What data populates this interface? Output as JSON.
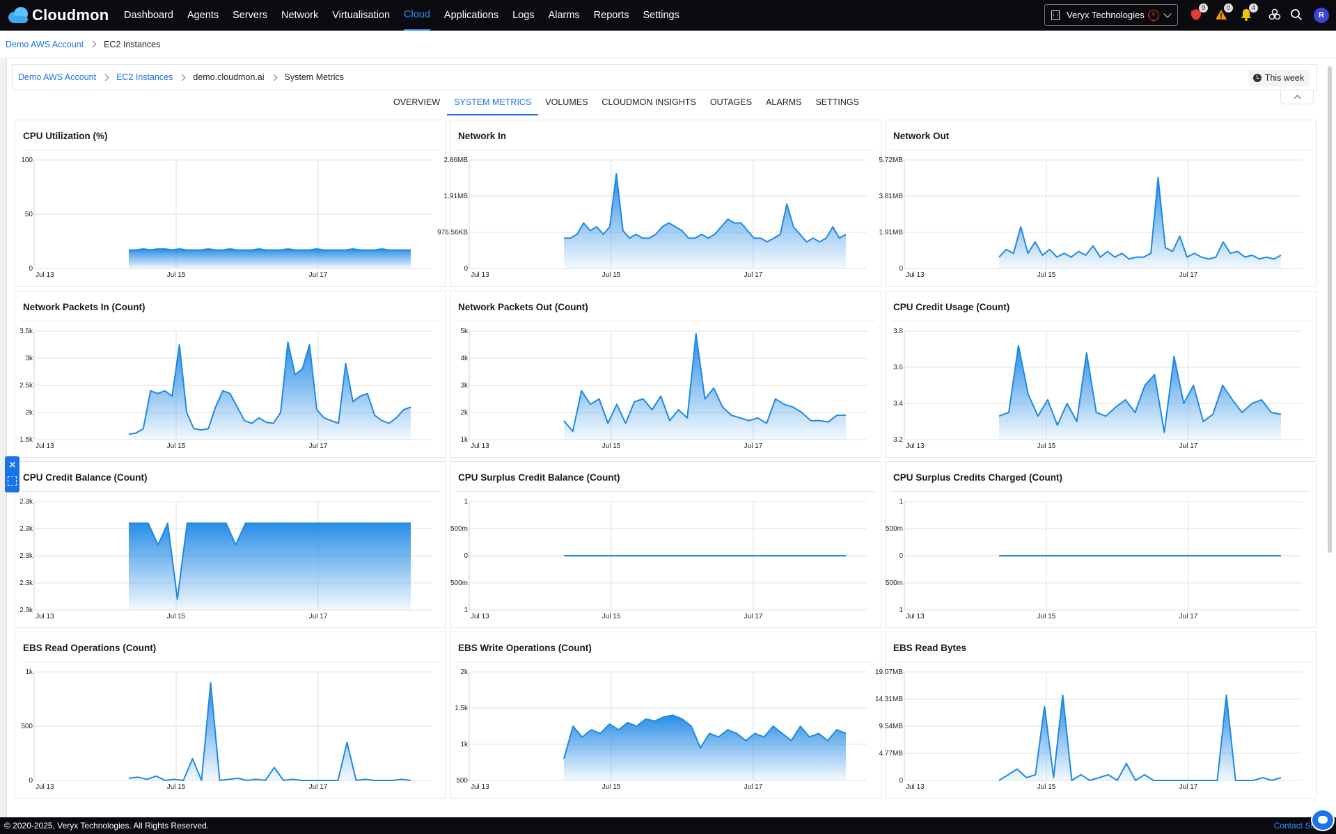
{
  "app": {
    "name": "Cloudmon"
  },
  "nav": {
    "items": [
      "Dashboard",
      "Agents",
      "Servers",
      "Network",
      "Virtualisation",
      "Cloud",
      "Applications",
      "Logs",
      "Alarms",
      "Reports",
      "Settings"
    ],
    "active": "Cloud"
  },
  "org_select": {
    "value": "Veryx Technologies"
  },
  "notifications": {
    "security_count": "9",
    "warning_count": "0",
    "bell_count": "4"
  },
  "user": {
    "avatar_initial": "R"
  },
  "breadcrumb_top": {
    "level1": "Demo AWS Account",
    "level2": "EC2 Instances"
  },
  "breadcrumb_inner": {
    "level1": "Demo AWS Account",
    "level2": "EC2 Instances",
    "level3": "demo.cloudmon.ai",
    "level4": "System Metrics"
  },
  "time_range": {
    "label": "This week"
  },
  "tabs": [
    "OVERVIEW",
    "SYSTEM METRICS",
    "VOLUMES",
    "CLOUDMON INSIGHTS",
    "OUTAGES",
    "ALARMS",
    "SETTINGS"
  ],
  "active_tab": "SYSTEM METRICS",
  "footer": {
    "copyright": "© 2020-2025, Veryx Technologies. All Rights Reserved.",
    "contact": "Contact Su"
  },
  "colors": {
    "accent": "#1a73e8",
    "series": "#1e88e5",
    "topbar": "#0b0b0f"
  },
  "chart_data": [
    {
      "title": "CPU Utilization (%)",
      "type": "area",
      "yticks": [
        "100",
        "50",
        "0"
      ],
      "ylim": [
        0,
        100
      ],
      "xticks": [
        "Jul 13",
        "Jul 15",
        "Jul 17"
      ],
      "values": [
        17,
        17,
        18,
        17,
        18,
        18,
        17,
        18,
        17,
        17,
        17,
        18,
        17,
        17,
        18,
        17,
        17,
        17,
        18,
        17,
        17,
        17,
        18,
        17,
        17,
        17,
        18,
        17,
        17,
        17,
        17,
        18,
        17,
        17,
        17,
        18,
        17,
        17,
        17,
        17
      ]
    },
    {
      "title": "Network In",
      "type": "area",
      "yticks": [
        "2.86MB",
        "1.91MB",
        "976.56KB",
        "0"
      ],
      "ylim": [
        0,
        2.86
      ],
      "xticks": [
        "Jul 13",
        "Jul 15",
        "Jul 17"
      ],
      "values": [
        0.8,
        0.8,
        0.9,
        1.2,
        1.0,
        1.1,
        0.9,
        1.1,
        2.5,
        1.0,
        0.8,
        0.9,
        0.8,
        0.8,
        0.9,
        1.1,
        1.2,
        1.1,
        1.0,
        0.8,
        0.8,
        0.9,
        0.8,
        0.9,
        1.1,
        1.3,
        1.2,
        1.2,
        1.0,
        0.8,
        0.8,
        0.7,
        0.8,
        0.9,
        1.7,
        1.1,
        0.9,
        0.7,
        0.8,
        0.7,
        0.8,
        1.1,
        0.8,
        0.9
      ]
    },
    {
      "title": "Network Out",
      "type": "area",
      "yticks": [
        "5.72MB",
        "3.81MB",
        "1.91MB",
        "0"
      ],
      "ylim": [
        0,
        5.72
      ],
      "xticks": [
        "Jul 13",
        "Jul 15",
        "Jul 17"
      ],
      "values": [
        0.6,
        1.0,
        0.8,
        2.2,
        0.8,
        1.4,
        0.7,
        1.0,
        0.6,
        0.8,
        0.6,
        0.9,
        0.7,
        1.2,
        0.6,
        0.9,
        0.6,
        0.8,
        0.5,
        0.6,
        0.6,
        0.8,
        4.8,
        1.1,
        0.9,
        1.7,
        0.6,
        0.8,
        0.6,
        0.5,
        0.6,
        1.4,
        0.8,
        0.9,
        0.6,
        0.7,
        0.5,
        0.6,
        0.5,
        0.7
      ]
    },
    {
      "title": "Network Packets In (Count)",
      "type": "area",
      "yticks": [
        "3.5k",
        "3k",
        "2.5k",
        "2k",
        "1.5k"
      ],
      "ylim": [
        1500,
        3500
      ],
      "xticks": [
        "Jul 13",
        "Jul 15",
        "Jul 17"
      ],
      "values": [
        1600,
        1620,
        1700,
        2400,
        2350,
        2400,
        2300,
        3250,
        2000,
        1700,
        1680,
        1700,
        2100,
        2400,
        2350,
        2100,
        1850,
        1800,
        1900,
        1820,
        1800,
        2000,
        3300,
        2700,
        2800,
        3250,
        2050,
        1900,
        1850,
        1800,
        2900,
        2200,
        2300,
        2350,
        1950,
        1850,
        1800,
        1900,
        2050,
        2100
      ]
    },
    {
      "title": "Network Packets Out (Count)",
      "type": "area",
      "yticks": [
        "5k",
        "4k",
        "3k",
        "2k",
        "1k"
      ],
      "ylim": [
        1000,
        5000
      ],
      "xticks": [
        "Jul 13",
        "Jul 15",
        "Jul 17"
      ],
      "values": [
        1700,
        1300,
        2800,
        2300,
        2500,
        1600,
        2300,
        1600,
        2400,
        2500,
        2100,
        2600,
        1700,
        2100,
        1800,
        4900,
        2500,
        2900,
        2200,
        1900,
        1800,
        1700,
        1800,
        1600,
        2500,
        2300,
        2200,
        2000,
        1700,
        1700,
        1650,
        1900,
        1900
      ]
    },
    {
      "title": "CPU Credit Usage (Count)",
      "type": "area",
      "yticks": [
        "3.8",
        "3.6",
        "3.4",
        "3.2"
      ],
      "ylim": [
        3.2,
        3.8
      ],
      "xticks": [
        "Jul 13",
        "Jul 15",
        "Jul 17"
      ],
      "values": [
        3.33,
        3.35,
        3.72,
        3.45,
        3.33,
        3.42,
        3.28,
        3.4,
        3.3,
        3.68,
        3.35,
        3.33,
        3.38,
        3.42,
        3.35,
        3.5,
        3.56,
        3.24,
        3.66,
        3.4,
        3.5,
        3.3,
        3.34,
        3.5,
        3.42,
        3.35,
        3.4,
        3.42,
        3.35,
        3.34
      ]
    },
    {
      "title": "CPU Credit Balance (Count)",
      "type": "area",
      "yticks": [
        "2.3k",
        "2.3k",
        "2.3k",
        "2.3k",
        "2.3k"
      ],
      "ylim": [
        2295,
        2305
      ],
      "xticks": [
        "Jul 13",
        "Jul 15",
        "Jul 17"
      ],
      "values": [
        2303,
        2303,
        2303,
        2301,
        2303,
        2296,
        2303,
        2303,
        2303,
        2303,
        2303,
        2301,
        2303,
        2303,
        2303,
        2303,
        2303,
        2303,
        2303,
        2303,
        2303,
        2303,
        2303,
        2303,
        2303,
        2303,
        2303,
        2303,
        2303,
        2303
      ]
    },
    {
      "title": "CPU Surplus Credit Balance (Count)",
      "type": "line",
      "yticks": [
        "1",
        "500m",
        "0",
        "500m",
        "1"
      ],
      "ylim": [
        -1,
        1
      ],
      "xticks": [
        "Jul 13",
        "Jul 15",
        "Jul 17"
      ],
      "values": [
        0,
        0,
        0,
        0,
        0,
        0,
        0,
        0,
        0,
        0
      ]
    },
    {
      "title": "CPU Surplus Credits Charged (Count)",
      "type": "line",
      "yticks": [
        "1",
        "500m",
        "0",
        "500m",
        "1"
      ],
      "ylim": [
        -1,
        1
      ],
      "xticks": [
        "Jul 13",
        "Jul 15",
        "Jul 17"
      ],
      "values": [
        0,
        0,
        0,
        0,
        0,
        0,
        0,
        0,
        0,
        0
      ]
    },
    {
      "title": "EBS Read Operations (Count)",
      "type": "area",
      "yticks": [
        "1k",
        "500",
        "0"
      ],
      "ylim": [
        0,
        1000
      ],
      "xticks": [
        "Jul 13",
        "Jul 15",
        "Jul 17"
      ],
      "values": [
        20,
        30,
        10,
        40,
        0,
        10,
        0,
        200,
        0,
        900,
        0,
        10,
        20,
        0,
        10,
        0,
        120,
        0,
        10,
        0,
        0,
        0,
        0,
        0,
        350,
        0,
        10,
        0,
        0,
        0,
        10,
        0
      ]
    },
    {
      "title": "EBS Write Operations (Count)",
      "type": "area",
      "yticks": [
        "2k",
        "1.5k",
        "1k",
        "500"
      ],
      "ylim": [
        500,
        2000
      ],
      "xticks": [
        "Jul 13",
        "Jul 15",
        "Jul 17"
      ],
      "values": [
        800,
        1250,
        1100,
        1200,
        1150,
        1280,
        1200,
        1300,
        1250,
        1350,
        1320,
        1380,
        1400,
        1350,
        1250,
        950,
        1150,
        1100,
        1200,
        1150,
        1050,
        1150,
        1100,
        1250,
        1150,
        1050,
        1250,
        1100,
        1150,
        1050,
        1200,
        1150
      ]
    },
    {
      "title": "EBS Read Bytes",
      "type": "area",
      "yticks": [
        "19.07MB",
        "14.31MB",
        "9.54MB",
        "4.77MB",
        "0"
      ],
      "ylim": [
        0,
        19.07
      ],
      "xticks": [
        "Jul 13",
        "Jul 15",
        "Jul 17"
      ],
      "values": [
        0,
        1,
        2,
        0.5,
        1,
        13,
        0.5,
        15,
        0,
        1,
        0,
        0.5,
        1,
        0,
        3,
        0,
        1,
        0,
        0,
        0,
        0,
        0,
        0,
        0,
        0,
        15,
        0,
        0,
        0,
        0.5,
        0,
        0.5
      ]
    }
  ]
}
